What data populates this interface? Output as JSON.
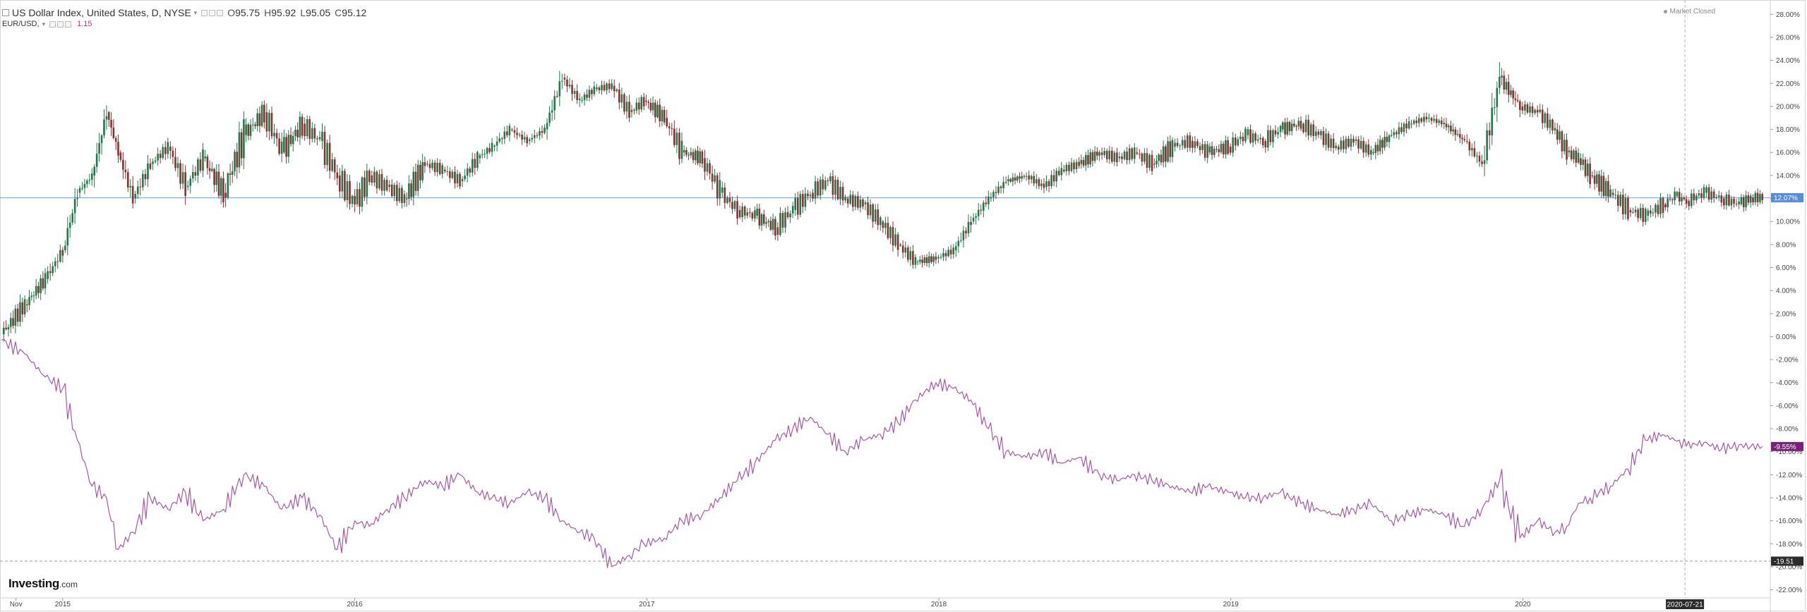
{
  "header": {
    "symbol_title": "US Dollar Index, United States, D, NYSE",
    "ohlc": [
      {
        "k": "O",
        "v": "95.75"
      },
      {
        "k": "H",
        "v": "95.92"
      },
      {
        "k": "L",
        "v": "95.05"
      },
      {
        "k": "C",
        "v": "95.12"
      }
    ],
    "compare_symbol": "EUR/USD,",
    "compare_value": "1.15",
    "market_status": "Market Closed"
  },
  "watermark": {
    "brand": "Investing",
    "suffix": ".com"
  },
  "colors": {
    "up": "#1e7a4a",
    "down": "#8c2f2f",
    "compare_line": "#a55aa5",
    "last_price_badge": "#5b8bd8",
    "compare_badge": "#7a1f7a",
    "low_badge": "#2b2b2b",
    "crosshair_badge": "#2b2b2b"
  },
  "chart_data": {
    "type": "line",
    "x_labels": [
      "Nov",
      "2015",
      "2016",
      "2017",
      "2018",
      "2019",
      "2020"
    ],
    "x_cursor_label": "2020-07-21",
    "y_ticks": [
      "28.00%",
      "26.00%",
      "24.00%",
      "22.00%",
      "20.00%",
      "18.00%",
      "16.00%",
      "14.00%",
      "12.00%",
      "10.00%",
      "8.00%",
      "6.00%",
      "4.00%",
      "2.00%",
      "0.00%",
      "-2.00%",
      "-4.00%",
      "-6.00%",
      "-8.00%",
      "-10.00%",
      "-12.00%",
      "-14.00%",
      "-16.00%",
      "-18.00%",
      "-20.00%",
      "-22.00%"
    ],
    "ylim": [
      -22.7,
      29.0
    ],
    "series": [
      {
        "name": "US Dollar Index",
        "style": "candlestick",
        "x": [
          2014.79,
          2014.87,
          2014.94,
          2015.0,
          2015.05,
          2015.1,
          2015.15,
          2015.19,
          2015.24,
          2015.3,
          2015.36,
          2015.42,
          2015.48,
          2015.55,
          2015.62,
          2015.69,
          2015.75,
          2015.82,
          2015.88,
          2015.94,
          2016.0,
          2016.05,
          2016.11,
          2016.17,
          2016.24,
          2016.3,
          2016.36,
          2016.42,
          2016.47,
          2016.53,
          2016.59,
          2016.65,
          2016.71,
          2016.77,
          2016.82,
          2016.88,
          2016.94,
          2016.99,
          2017.06,
          2017.12,
          2017.19,
          2017.25,
          2017.31,
          2017.37,
          2017.44,
          2017.5,
          2017.56,
          2017.62,
          2017.68,
          2017.74,
          2017.8,
          2017.86,
          2017.92,
          2017.99,
          2018.05,
          2018.11,
          2018.17,
          2018.23,
          2018.3,
          2018.36,
          2018.42,
          2018.48,
          2018.55,
          2018.61,
          2018.67,
          2018.73,
          2018.8,
          2018.86,
          2018.92,
          2018.99,
          2019.05,
          2019.11,
          2019.17,
          2019.24,
          2019.3,
          2019.36,
          2019.42,
          2019.48,
          2019.55,
          2019.61,
          2019.67,
          2019.73,
          2019.8,
          2019.86,
          2019.92,
          2019.99,
          2020.05,
          2020.11,
          2020.15,
          2020.19,
          2020.23,
          2020.3,
          2020.36,
          2020.42,
          2020.48,
          2020.52,
          2020.56,
          2020.62,
          2020.68,
          2020.74,
          2020.78,
          2020.82
        ],
        "y": [
          0.2,
          2.8,
          5.0,
          7.5,
          12.5,
          14.0,
          19.5,
          16.0,
          12.0,
          15.0,
          16.5,
          13.0,
          15.5,
          12.5,
          17.5,
          19.5,
          16.0,
          18.5,
          17.0,
          14.0,
          11.5,
          14.0,
          13.0,
          12.0,
          15.0,
          14.5,
          13.5,
          15.5,
          16.5,
          18.0,
          17.0,
          18.0,
          22.5,
          20.5,
          21.5,
          21.8,
          19.5,
          20.5,
          19.0,
          16.0,
          15.5,
          12.5,
          11.0,
          10.5,
          9.5,
          11.0,
          12.5,
          13.5,
          12.0,
          11.5,
          10.0,
          8.0,
          6.5,
          6.8,
          7.5,
          10.0,
          12.0,
          13.5,
          14.0,
          13.0,
          14.5,
          15.0,
          16.0,
          15.5,
          16.0,
          15.0,
          16.5,
          17.0,
          16.0,
          16.5,
          17.5,
          17.0,
          18.0,
          18.5,
          17.5,
          16.5,
          17.0,
          16.0,
          17.5,
          18.5,
          19.0,
          18.5,
          17.0,
          15.0,
          22.5,
          20.0,
          19.5,
          18.0,
          16.0,
          15.5,
          14.0,
          12.5,
          11.0,
          10.5,
          11.5,
          12.2,
          11.8,
          12.5,
          12.0,
          11.5,
          12.07,
          12.07
        ]
      },
      {
        "name": "EUR/USD",
        "style": "line",
        "x": [
          2014.79,
          2014.87,
          2014.94,
          2015.0,
          2015.05,
          2015.1,
          2015.15,
          2015.19,
          2015.24,
          2015.3,
          2015.36,
          2015.42,
          2015.48,
          2015.55,
          2015.62,
          2015.69,
          2015.75,
          2015.82,
          2015.88,
          2015.94,
          2016.0,
          2016.05,
          2016.11,
          2016.17,
          2016.24,
          2016.3,
          2016.36,
          2016.42,
          2016.47,
          2016.53,
          2016.59,
          2016.65,
          2016.71,
          2016.77,
          2016.82,
          2016.88,
          2016.94,
          2016.99,
          2017.06,
          2017.12,
          2017.19,
          2017.25,
          2017.31,
          2017.37,
          2017.44,
          2017.5,
          2017.56,
          2017.62,
          2017.68,
          2017.74,
          2017.8,
          2017.86,
          2017.92,
          2017.99,
          2018.05,
          2018.11,
          2018.17,
          2018.23,
          2018.3,
          2018.36,
          2018.42,
          2018.48,
          2018.55,
          2018.61,
          2018.67,
          2018.73,
          2018.8,
          2018.86,
          2018.92,
          2018.99,
          2019.05,
          2019.11,
          2019.17,
          2019.24,
          2019.3,
          2019.36,
          2019.42,
          2019.48,
          2019.55,
          2019.61,
          2019.67,
          2019.73,
          2019.8,
          2019.86,
          2019.92,
          2019.99,
          2020.05,
          2020.11,
          2020.15,
          2020.19,
          2020.23,
          2020.3,
          2020.36,
          2020.42,
          2020.48,
          2020.52,
          2020.56,
          2020.62,
          2020.68,
          2020.74,
          2020.78,
          2020.82
        ],
        "y": [
          -0.3,
          -1.5,
          -3.5,
          -4.5,
          -9.0,
          -13.0,
          -14.0,
          -18.5,
          -17.0,
          -14.0,
          -15.0,
          -13.5,
          -16.0,
          -15.0,
          -12.0,
          -13.0,
          -15.0,
          -14.0,
          -15.5,
          -18.5,
          -16.0,
          -16.5,
          -15.0,
          -14.0,
          -12.5,
          -13.0,
          -12.0,
          -13.5,
          -14.0,
          -14.5,
          -13.5,
          -14.0,
          -16.0,
          -17.0,
          -17.5,
          -20.0,
          -19.0,
          -18.0,
          -17.5,
          -16.0,
          -15.5,
          -14.0,
          -12.5,
          -11.0,
          -9.0,
          -8.0,
          -7.0,
          -8.5,
          -10.0,
          -9.0,
          -8.5,
          -7.5,
          -5.5,
          -4.0,
          -4.5,
          -5.5,
          -8.0,
          -10.0,
          -10.5,
          -10.0,
          -11.0,
          -10.5,
          -12.0,
          -12.5,
          -12.0,
          -12.5,
          -13.0,
          -13.5,
          -13.0,
          -13.5,
          -14.0,
          -14.0,
          -13.5,
          -14.5,
          -15.0,
          -15.5,
          -15.0,
          -14.5,
          -16.0,
          -15.5,
          -15.0,
          -15.5,
          -16.5,
          -15.0,
          -12.5,
          -17.5,
          -16.0,
          -17.0,
          -16.5,
          -14.5,
          -14.0,
          -13.0,
          -11.5,
          -9.0,
          -8.5,
          -9.0,
          -9.5,
          -9.2,
          -9.8,
          -9.4,
          -9.55,
          -9.55
        ]
      }
    ],
    "badges": {
      "last_price": "12.07%",
      "compare_last": "-9.55%",
      "low": "-19.51"
    },
    "reference_levels": [
      12.07,
      -19.51
    ],
    "grid": false,
    "legend": "top-left"
  }
}
